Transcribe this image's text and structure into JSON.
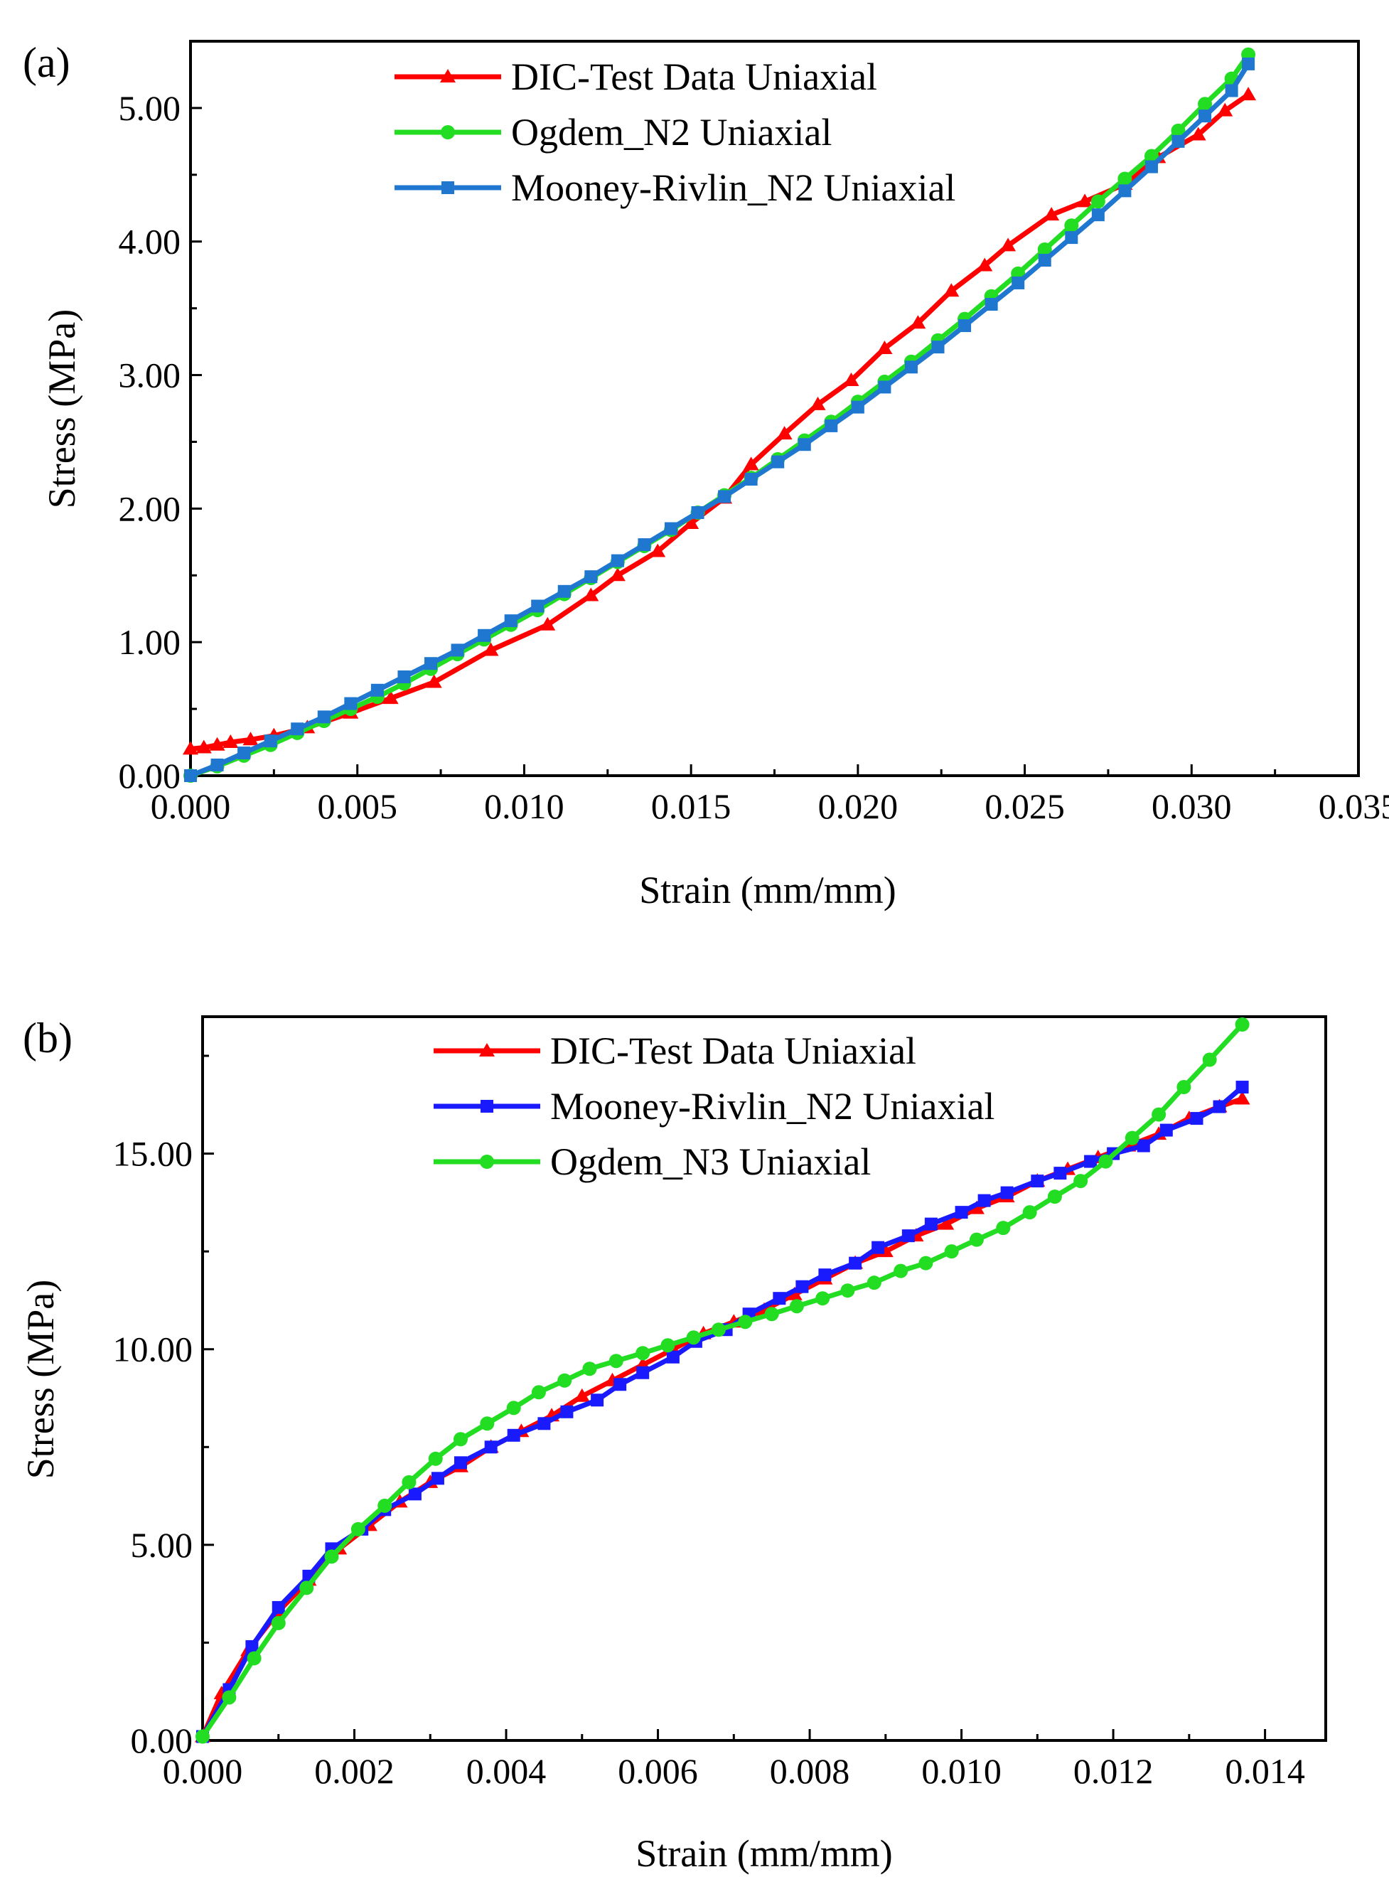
{
  "chart_data": [
    {
      "type": "line",
      "panel_label": "(a)",
      "title": "",
      "xlabel": "Strain (mm/mm)",
      "ylabel": "Stress (MPa)",
      "xlim": [
        0,
        0.035
      ],
      "ylim": [
        0,
        5.5
      ],
      "xticks": [
        "0.000",
        "0.005",
        "0.010",
        "0.015",
        "0.020",
        "0.025",
        "0.030",
        "0.035"
      ],
      "yticks": [
        "0.00",
        "1.00",
        "2.00",
        "3.00",
        "4.00",
        "5.00"
      ],
      "legend_position": "top-center",
      "series": [
        {
          "name": "DIC-Test Data Uniaxial",
          "color": "#ff0000",
          "marker": "triangle",
          "x": [
            0.0,
            0.0004,
            0.0008,
            0.0012,
            0.0018,
            0.0025,
            0.0035,
            0.0048,
            0.006,
            0.0073,
            0.009,
            0.0107,
            0.012,
            0.0128,
            0.014,
            0.015,
            0.016,
            0.0168,
            0.0178,
            0.0188,
            0.0198,
            0.0208,
            0.0218,
            0.0228,
            0.0238,
            0.0245,
            0.0258,
            0.0268,
            0.028,
            0.029,
            0.0302,
            0.031,
            0.0317
          ],
          "y": [
            0.2,
            0.21,
            0.23,
            0.25,
            0.27,
            0.3,
            0.36,
            0.47,
            0.58,
            0.7,
            0.94,
            1.13,
            1.35,
            1.5,
            1.68,
            1.89,
            2.08,
            2.33,
            2.56,
            2.78,
            2.96,
            3.2,
            3.39,
            3.63,
            3.82,
            3.97,
            4.2,
            4.3,
            4.43,
            4.63,
            4.8,
            4.98,
            5.1
          ]
        },
        {
          "name": "Ogdem_N2 Uniaxial",
          "color": "#22dd22",
          "marker": "circle",
          "x": [
            0.0,
            0.0008,
            0.0016,
            0.0024,
            0.0032,
            0.004,
            0.0048,
            0.0056,
            0.0064,
            0.0072,
            0.008,
            0.0088,
            0.0096,
            0.0104,
            0.0112,
            0.012,
            0.0128,
            0.0136,
            0.0144,
            0.0152,
            0.016,
            0.0168,
            0.0176,
            0.0184,
            0.0192,
            0.02,
            0.0208,
            0.0216,
            0.0224,
            0.0232,
            0.024,
            0.0248,
            0.0256,
            0.0264,
            0.0272,
            0.028,
            0.0288,
            0.0296,
            0.0304,
            0.0312,
            0.0317
          ],
          "y": [
            0.0,
            0.07,
            0.15,
            0.23,
            0.32,
            0.41,
            0.5,
            0.59,
            0.69,
            0.8,
            0.91,
            1.02,
            1.13,
            1.24,
            1.36,
            1.48,
            1.6,
            1.72,
            1.84,
            1.97,
            2.1,
            2.23,
            2.37,
            2.51,
            2.65,
            2.8,
            2.95,
            3.1,
            3.26,
            3.42,
            3.59,
            3.76,
            3.94,
            4.12,
            4.3,
            4.47,
            4.64,
            4.83,
            5.03,
            5.22,
            5.4
          ]
        },
        {
          "name": "Mooney-Rivlin_N2 Uniaxial",
          "color": "#1f77d0",
          "marker": "square",
          "x": [
            0.0,
            0.0008,
            0.0016,
            0.0024,
            0.0032,
            0.004,
            0.0048,
            0.0056,
            0.0064,
            0.0072,
            0.008,
            0.0088,
            0.0096,
            0.0104,
            0.0112,
            0.012,
            0.0128,
            0.0136,
            0.0144,
            0.0152,
            0.016,
            0.0168,
            0.0176,
            0.0184,
            0.0192,
            0.02,
            0.0208,
            0.0216,
            0.0224,
            0.0232,
            0.024,
            0.0248,
            0.0256,
            0.0264,
            0.0272,
            0.028,
            0.0288,
            0.0296,
            0.0304,
            0.0312,
            0.0317
          ],
          "y": [
            0.0,
            0.08,
            0.17,
            0.26,
            0.35,
            0.44,
            0.54,
            0.64,
            0.74,
            0.84,
            0.94,
            1.05,
            1.16,
            1.27,
            1.38,
            1.49,
            1.61,
            1.73,
            1.85,
            1.97,
            2.09,
            2.22,
            2.35,
            2.48,
            2.62,
            2.76,
            2.91,
            3.06,
            3.21,
            3.37,
            3.53,
            3.69,
            3.86,
            4.03,
            4.2,
            4.38,
            4.56,
            4.75,
            4.94,
            5.13,
            5.33
          ]
        }
      ]
    },
    {
      "type": "line",
      "panel_label": "(b)",
      "title": "",
      "xlabel": "Strain (mm/mm)",
      "ylabel": "Stress (MPa)",
      "xlim": [
        0,
        0.0148
      ],
      "ylim": [
        0,
        18.5
      ],
      "xticks": [
        "0.000",
        "0.002",
        "0.004",
        "0.006",
        "0.008",
        "0.010",
        "0.012",
        "0.014"
      ],
      "yticks": [
        "0.00",
        "5.00",
        "10.00",
        "15.00"
      ],
      "legend_position": "top-center",
      "series": [
        {
          "name": "DIC-Test Data Uniaxial",
          "color": "#ff0000",
          "marker": "triangle",
          "x": [
            0.0,
            0.00025,
            0.0006,
            0.001,
            0.0014,
            0.0018,
            0.0022,
            0.0026,
            0.003,
            0.0034,
            0.0038,
            0.0042,
            0.0046,
            0.005,
            0.0054,
            0.0058,
            0.0062,
            0.0066,
            0.007,
            0.0074,
            0.0078,
            0.0082,
            0.0086,
            0.009,
            0.0094,
            0.0098,
            0.0102,
            0.0106,
            0.011,
            0.0114,
            0.0118,
            0.0122,
            0.0126,
            0.013,
            0.0134,
            0.0137
          ],
          "y": [
            0.1,
            1.2,
            2.3,
            3.3,
            4.1,
            4.9,
            5.5,
            6.1,
            6.6,
            7.0,
            7.5,
            7.9,
            8.3,
            8.8,
            9.2,
            9.6,
            10.0,
            10.4,
            10.7,
            11.0,
            11.4,
            11.8,
            12.2,
            12.5,
            12.9,
            13.2,
            13.6,
            13.9,
            14.3,
            14.6,
            14.9,
            15.2,
            15.5,
            15.9,
            16.2,
            16.4
          ]
        },
        {
          "name": "Mooney-Rivlin_N2 Uniaxial",
          "color": "#1a1aff",
          "marker": "square",
          "x": [
            0.0,
            0.00035,
            0.00065,
            0.001,
            0.0014,
            0.0017,
            0.0021,
            0.0024,
            0.0028,
            0.0031,
            0.0034,
            0.0038,
            0.0041,
            0.0045,
            0.0048,
            0.0052,
            0.0055,
            0.0058,
            0.0062,
            0.0065,
            0.0069,
            0.0072,
            0.0076,
            0.0079,
            0.0082,
            0.0086,
            0.0089,
            0.0093,
            0.0096,
            0.01,
            0.0103,
            0.0106,
            0.011,
            0.0113,
            0.0117,
            0.012,
            0.0124,
            0.0127,
            0.0131,
            0.0134,
            0.0137
          ],
          "y": [
            0.1,
            1.3,
            2.4,
            3.4,
            4.2,
            4.9,
            5.4,
            5.9,
            6.3,
            6.7,
            7.1,
            7.5,
            7.8,
            8.1,
            8.4,
            8.7,
            9.1,
            9.4,
            9.8,
            10.2,
            10.5,
            10.9,
            11.3,
            11.6,
            11.9,
            12.2,
            12.6,
            12.9,
            13.2,
            13.5,
            13.8,
            14.0,
            14.3,
            14.5,
            14.8,
            15.0,
            15.2,
            15.6,
            15.9,
            16.2,
            16.7
          ]
        },
        {
          "name": "Ogdem_N3 Uniaxial",
          "color": "#22dd22",
          "marker": "circle",
          "x": [
            0.0,
            0.00035,
            0.00068,
            0.001,
            0.00137,
            0.0017,
            0.00205,
            0.0024,
            0.00272,
            0.00307,
            0.0034,
            0.00375,
            0.0041,
            0.00443,
            0.00477,
            0.0051,
            0.00545,
            0.0058,
            0.00613,
            0.00647,
            0.0068,
            0.00715,
            0.0075,
            0.00783,
            0.00817,
            0.0085,
            0.00885,
            0.0092,
            0.00953,
            0.00987,
            0.0102,
            0.01055,
            0.0109,
            0.01123,
            0.01157,
            0.0119,
            0.01225,
            0.0126,
            0.01293,
            0.01327,
            0.0137
          ],
          "y": [
            0.1,
            1.1,
            2.1,
            3.0,
            3.9,
            4.7,
            5.4,
            6.0,
            6.6,
            7.2,
            7.7,
            8.1,
            8.5,
            8.9,
            9.2,
            9.5,
            9.7,
            9.9,
            10.1,
            10.3,
            10.5,
            10.7,
            10.9,
            11.1,
            11.3,
            11.5,
            11.7,
            12.0,
            12.2,
            12.5,
            12.8,
            13.1,
            13.5,
            13.9,
            14.3,
            14.8,
            15.4,
            16.0,
            16.7,
            17.4,
            18.3
          ]
        }
      ]
    }
  ]
}
